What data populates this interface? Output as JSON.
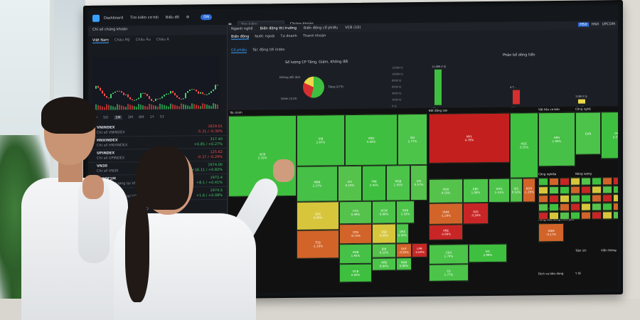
{
  "topbar": {
    "nav": [
      "Dashboard",
      "Tìm kiếm cơ hội",
      "Biểu đồ"
    ],
    "toggle": "ON",
    "search_placeholder": "Tìm kiếm...",
    "account": "Chứng khoán"
  },
  "left_panel": {
    "title": "Chỉ số chứng khoán",
    "region_tabs": [
      "Việt Nam",
      "Châu Mỹ",
      "Châu Âu",
      "Châu Á"
    ],
    "ranges": [
      "1D",
      "5D",
      "1M",
      "3M",
      "6M",
      "1Y",
      "5Y"
    ],
    "indices": [
      {
        "name": "VNINDEX",
        "sub": "Chỉ số VNINDEX",
        "value": "1819.01",
        "change": "-5.31 / -0.30%",
        "dir": "dn"
      },
      {
        "name": "HNXINDEX",
        "sub": "Chỉ số HNXINDEX",
        "value": "317.40",
        "change": "+0.85 / +0.27%",
        "dir": "up"
      },
      {
        "name": "UPINDEX",
        "sub": "Chỉ số UPINDEX",
        "value": "125.62",
        "change": "-0.37 / -0.29%",
        "dir": "dn"
      },
      {
        "name": "VN30",
        "sub": "Chỉ số VN30",
        "value": "1974.00",
        "change": "+16.11 / +0.82%",
        "dir": "up"
      },
      {
        "name": "VN30F1M",
        "sub": "Hợp đồng tương lai VN30F1M",
        "value": "1972.4",
        "change": "+8.1 / +0.41%",
        "dir": "up"
      },
      {
        "name": "VN30F2M",
        "sub": "Hợp đồng tương lai VN30F2M",
        "value": "1974.5",
        "change": "+1.6 / +0.08%",
        "dir": "up"
      },
      {
        "name": "VN30F1Q",
        "sub": "Hợp đồng tương lai VN30F1Q",
        "value": "",
        "change": "",
        "dir": "up"
      },
      {
        "name": "VN30F2Q",
        "sub": "Hợp đồng tương lai VN30F2Q",
        "value": "",
        "change": "",
        "dir": "up"
      }
    ]
  },
  "right_panel": {
    "window_tabs": [
      "Ngành nghề",
      "Biến động thị trường",
      "Biến động cổ phiếu",
      "VCB (10)"
    ],
    "exchanges": [
      "HSX",
      "HNX",
      "UPCOM"
    ],
    "sub_tabs": [
      "Biến động",
      "Nước ngoài",
      "Tự doanh",
      "Thanh khoản"
    ],
    "sub_tabs2": [
      "Cổ phiếu",
      "Tác động tới index"
    ],
    "pie_title": "Số lượng CP Tăng, Giảm, Không đổi",
    "pie_labels": [
      "Không đổi (62)",
      "Tăng (273)",
      "Giảm (113)"
    ],
    "distribution_title": "Phân bổ dòng tiền",
    "distribution_labels": [
      "Tăng",
      "Giảm",
      "K. đổi"
    ],
    "distribution_values": [
      "11,089.4 tỷ",
      "4,7...",
      "1186.5 tỷ"
    ],
    "dist_axis": [
      "12000 tỷ",
      "10000 tỷ",
      "8000 tỷ",
      "6000 tỷ",
      "4000 tỷ",
      "2000 tỷ",
      "0 tỷ"
    ],
    "groups": [
      "Tài chính",
      "Bất động sản",
      "Công nghệ",
      "Vật liệu cơ bản",
      "Hàng tiêu dùng",
      "Hàng tiêu dùng thiết yếu",
      "Công nghiệp",
      "Năng lượng",
      "Tiện ích",
      "Viễn thông",
      "Dịch vụ tiêu dùng",
      "Y tế"
    ],
    "cells": [
      {
        "t": "ACB",
        "v": "2.55%",
        "c": "#3fbf3f"
      },
      {
        "t": "VIB",
        "v": "2.87%",
        "c": "#3fbf3f"
      },
      {
        "t": "VND",
        "v": "4.60%",
        "c": "#3fbf3f"
      },
      {
        "t": "SSI",
        "v": "1.77%",
        "c": "#4cc44a"
      },
      {
        "t": "MBB",
        "v": "2.27%",
        "c": "#46c046"
      },
      {
        "t": "VCI",
        "v": "0.53%",
        "c": "#55c24c"
      },
      {
        "t": "TPB",
        "v": "3.45%",
        "c": "#3fbf3f"
      },
      {
        "t": "MSB",
        "v": "1.45%",
        "c": "#4cc44a"
      },
      {
        "t": "VIX",
        "v": "0.57%",
        "c": "#55c24c"
      },
      {
        "t": "SHS",
        "v": "0.00%",
        "c": "#d7c63c"
      },
      {
        "t": "CTG",
        "v": "0.39%",
        "c": "#55c24c"
      },
      {
        "t": "HCM",
        "v": "0.90%",
        "c": "#4cc44a"
      },
      {
        "t": "SHB",
        "v": "1.52%",
        "c": "#4cc44a"
      },
      {
        "t": "TCB",
        "v": "-1.10%",
        "c": "#d2642a"
      },
      {
        "t": "STB",
        "v": "-0.75%",
        "c": "#d2642a"
      },
      {
        "t": "SSB",
        "v": "0.00%",
        "c": "#d7c63c"
      },
      {
        "t": "ORS",
        "v": "0.60%",
        "c": "#4cc44a"
      },
      {
        "t": "HDB",
        "v": "1.94%",
        "c": "#46c046"
      },
      {
        "t": "EIB",
        "v": "0.52%",
        "c": "#55c24c"
      },
      {
        "t": "EVF",
        "v": "-0.90%",
        "c": "#d2642a"
      },
      {
        "t": "LPB",
        "v": "-3.60%",
        "c": "#c82626"
      },
      {
        "t": "VPB",
        "v": "0.94%",
        "c": "#4cc44a"
      },
      {
        "t": "OCB",
        "v": "2.60%",
        "c": "#3fbf3f"
      },
      {
        "t": "NAB",
        "v": "0.80%",
        "c": "#4cc44a"
      },
      {
        "t": "NVL",
        "v": "4.78%",
        "c": "#c41f1f"
      },
      {
        "t": "KBC",
        "v": "1.06%",
        "c": "#4cc44a"
      },
      {
        "t": "PDR",
        "v": "0.53%",
        "c": "#55c24c"
      },
      {
        "t": "DXG",
        "v": "1.41%",
        "c": "#4cc44a"
      },
      {
        "t": "IDC",
        "v": "0.52%",
        "c": "#55c24c"
      },
      {
        "t": "KDH",
        "v": "-1.26%",
        "c": "#d2642a"
      },
      {
        "t": "DIG",
        "v": "-3.26%",
        "c": "#c82626"
      },
      {
        "t": "VRE",
        "v": "-3.06%",
        "c": "#c82626"
      },
      {
        "t": "VHM",
        "v": "-1.59%",
        "c": "#d2642a"
      },
      {
        "t": "CEO",
        "v": "1.74%",
        "c": "#4cc44a"
      },
      {
        "t": "VIC",
        "v": "2.98%",
        "c": "#3fbf3f"
      },
      {
        "t": "CII",
        "v": "1.77%",
        "c": "#4cc44a"
      },
      {
        "t": "FPT",
        "v": "2.27%",
        "c": "#3fbf3f"
      },
      {
        "t": "HQC",
        "v": "3.55%",
        "c": "#3fbf3f"
      },
      {
        "t": "HPG",
        "v": "1.90%",
        "c": "#46c046"
      },
      {
        "t": "VNM",
        "v": "-0.17%",
        "c": "#d2642a"
      },
      {
        "t": "GVR",
        "v": "",
        "c": "#4cc44a"
      }
    ]
  }
}
